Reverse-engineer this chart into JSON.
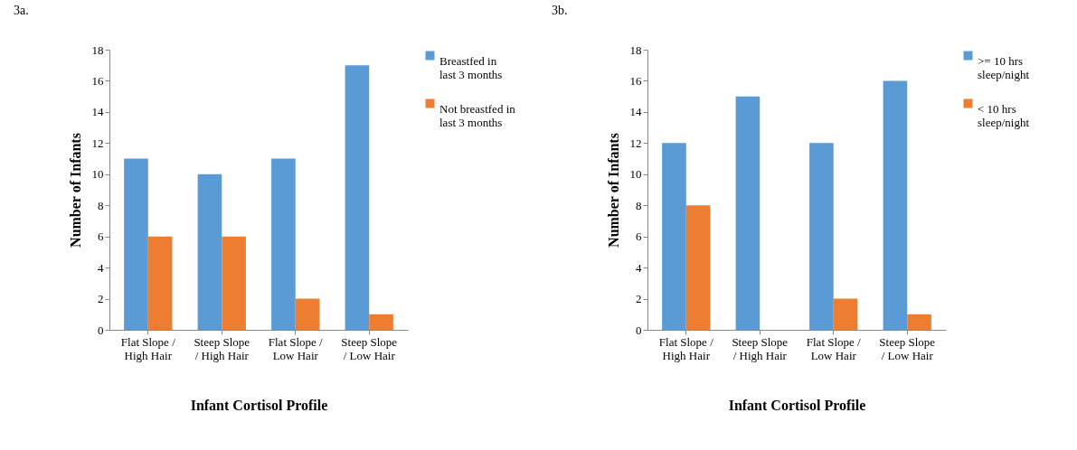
{
  "chart_data": [
    {
      "type": "bar",
      "title": "3a.",
      "categories": [
        "Flat Slope / High Hair",
        "Steep Slope / High Hair",
        "Flat Slope / Low Hair",
        "Steep Slope / Low Hair"
      ],
      "xlabel": "Infant Cortisol Profile",
      "ylabel": "Number of Infants",
      "ylim": [
        0,
        18
      ],
      "yticks": [
        0,
        2,
        4,
        6,
        8,
        10,
        12,
        14,
        16,
        18
      ],
      "legend": "right",
      "series": [
        {
          "name": "Breastfed in last 3 months",
          "color": "#5b9bd5",
          "values": [
            11,
            10,
            11,
            17
          ]
        },
        {
          "name": "Not breastfed in last 3 months",
          "color": "#ed7d31",
          "values": [
            6,
            6,
            2,
            1
          ]
        }
      ]
    },
    {
      "type": "bar",
      "title": "3b.",
      "categories": [
        "Flat Slope / High Hair",
        "Steep Slope / High Hair",
        "Flat Slope / Low Hair",
        "Steep Slope / Low Hair"
      ],
      "xlabel": "Infant Cortisol Profile",
      "ylabel": "Number of Infants",
      "ylim": [
        0,
        18
      ],
      "yticks": [
        0,
        2,
        4,
        6,
        8,
        10,
        12,
        14,
        16,
        18
      ],
      "legend": "right",
      "series": [
        {
          "name": ">= 10 hrs sleep/night",
          "color": "#5b9bd5",
          "values": [
            12,
            15,
            12,
            16
          ]
        },
        {
          "name": "< 10 hrs sleep/night",
          "color": "#ed7d31",
          "values": [
            8,
            0,
            2,
            1
          ]
        }
      ]
    }
  ]
}
